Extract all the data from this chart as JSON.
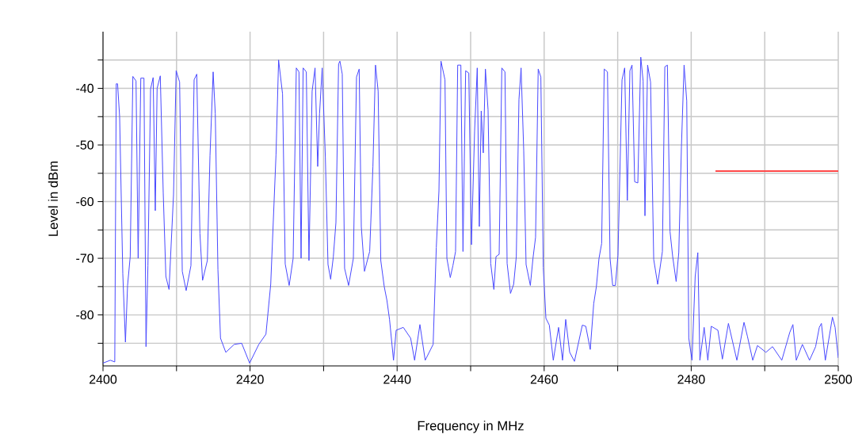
{
  "chart_data": {
    "type": "line",
    "xlabel": "Frequency in MHz",
    "ylabel": "Level in dBm",
    "xlim": [
      2400,
      2500
    ],
    "ylim": [
      -89,
      -30
    ],
    "xticks": [
      2400,
      {
        "value": 2410,
        "label": null
      },
      2420,
      {
        "value": 2430,
        "label": null
      },
      2440,
      {
        "value": 2450,
        "label": null
      },
      2460,
      {
        "value": 2470,
        "label": null
      },
      2480,
      {
        "value": 2490,
        "label": null
      },
      2500
    ],
    "yticks": [
      {
        "value": -85,
        "label": null
      },
      -80,
      {
        "value": -75,
        "label": null
      },
      -70,
      {
        "value": -65,
        "label": null
      },
      -60,
      {
        "value": -55,
        "label": null
      },
      -50,
      {
        "value": -45,
        "label": null
      },
      -40,
      {
        "value": -35,
        "label": null
      }
    ],
    "grid": true,
    "series": [
      {
        "color": "#4848ff",
        "x": [
          2400.0,
          2401.0,
          2401.6,
          2401.8,
          2401.98,
          2402.26,
          2402.69,
          2403.05,
          2403.34,
          2403.7,
          2404.06,
          2404.49,
          2404.78,
          2405.14,
          2405.57,
          2405.85,
          2406.11,
          2406.47,
          2406.82,
          2407.11,
          2407.36,
          2407.79,
          2408.19,
          2408.55,
          2408.98,
          2409.59,
          2409.95,
          2410.42,
          2410.78,
          2411.31,
          2411.96,
          2412.39,
          2412.75,
          2413.18,
          2413.54,
          2414.19,
          2414.55,
          2414.98,
          2415.27,
          2415.63,
          2415.98,
          2416.7,
          2417.85,
          2418.86,
          2419.94,
          2421.19,
          2422.16,
          2422.81,
          2423.53,
          2423.88,
          2424.42,
          2424.78,
          2425.32,
          2425.86,
          2426.29,
          2426.65,
          2426.94,
          2427.22,
          2427.65,
          2428.01,
          2428.44,
          2428.84,
          2429.2,
          2429.45,
          2429.81,
          2430.24,
          2430.6,
          2430.96,
          2431.32,
          2431.68,
          2432.04,
          2432.22,
          2432.54,
          2432.86,
          2433.4,
          2434.05,
          2434.48,
          2434.84,
          2435.13,
          2435.56,
          2436.27,
          2436.71,
          2437.06,
          2437.42,
          2437.78,
          2438.25,
          2438.61,
          2438.97,
          2439.51,
          2439.87,
          2440.84,
          2441.84,
          2442.38,
          2443.1,
          2443.82,
          2444.9,
          2445.33,
          2445.69,
          2445.97,
          2446.51,
          2446.77,
          2447.23,
          2447.59,
          2447.95,
          2448.24,
          2448.67,
          2448.96,
          2449.32,
          2449.75,
          2450.11,
          2450.54,
          2450.9,
          2451.18,
          2451.44,
          2451.72,
          2452.01,
          2452.37,
          2452.73,
          2453.16,
          2453.45,
          2453.88,
          2454.24,
          2454.67,
          2454.96,
          2455.42,
          2455.85,
          2456.21,
          2456.57,
          2456.86,
          2457.22,
          2457.54,
          2458.12,
          2458.48,
          2458.83,
          2459.19,
          2459.55,
          2459.88,
          2460.24,
          2460.7,
          2461.24,
          2461.96,
          2462.5,
          2462.93,
          2463.47,
          2464.12,
          2465.19,
          2465.66,
          2466.27,
          2466.74,
          2467.1,
          2467.46,
          2467.82,
          2468.17,
          2468.61,
          2468.96,
          2469.32,
          2469.68,
          2470.04,
          2470.59,
          2470.95,
          2471.31,
          2471.66,
          2471.95,
          2472.31,
          2472.74,
          2473.14,
          2473.46,
          2473.71,
          2474.07,
          2474.47,
          2474.9,
          2475.44,
          2476.08,
          2476.41,
          2476.76,
          2477.12,
          2477.48,
          2477.95,
          2478.31,
          2478.67,
          2479.03,
          2479.39,
          2479.67,
          2480.11,
          2480.54,
          2480.9,
          2481.18,
          2481.76,
          2482.26,
          2482.73,
          2483.63,
          2484.24,
          2485.06,
          2486.21,
          2487.18,
          2487.65,
          2488.37,
          2489.01,
          2490.16,
          2491.06,
          2492.32,
          2493.4,
          2493.83,
          2494.29,
          2495.12,
          2496.09,
          2496.92,
          2497.42,
          2497.71,
          2498.24,
          2499.21,
          2499.57,
          2500.0
        ],
        "values": [
          -88.5,
          -88.0,
          -88.3,
          -39.2,
          -39.2,
          -45.0,
          -72.7,
          -84.8,
          -74.8,
          -69.7,
          -37.9,
          -38.7,
          -70.0,
          -38.2,
          -38.2,
          -85.6,
          -71.3,
          -40.1,
          -38.1,
          -61.6,
          -40.0,
          -37.8,
          -58.4,
          -73.2,
          -75.5,
          -58.8,
          -36.9,
          -38.9,
          -72.3,
          -75.7,
          -71.3,
          -38.5,
          -37.5,
          -65.6,
          -73.9,
          -70.4,
          -51.9,
          -37.1,
          -44.5,
          -72.0,
          -84.1,
          -86.6,
          -85.2,
          -85.0,
          -88.5,
          -85.2,
          -83.4,
          -74.6,
          -51.7,
          -35.0,
          -41.0,
          -71.0,
          -74.8,
          -70.0,
          -36.4,
          -37.1,
          -70.0,
          -36.4,
          -37.1,
          -70.4,
          -40.5,
          -36.4,
          -53.8,
          -44.5,
          -36.4,
          -52.1,
          -71.1,
          -73.7,
          -69.8,
          -63.7,
          -35.7,
          -35.2,
          -37.5,
          -71.8,
          -74.8,
          -70.0,
          -38.0,
          -36.6,
          -64.4,
          -72.3,
          -68.8,
          -53.8,
          -35.9,
          -40.5,
          -70.4,
          -75.0,
          -77.4,
          -80.8,
          -88.0,
          -82.7,
          -82.2,
          -84.1,
          -88.0,
          -81.7,
          -88.0,
          -85.2,
          -68.1,
          -58.1,
          -35.2,
          -38.5,
          -70.0,
          -73.4,
          -71.3,
          -68.8,
          -35.9,
          -35.9,
          -68.8,
          -36.9,
          -37.3,
          -67.6,
          -47.5,
          -36.4,
          -64.4,
          -44.0,
          -51.4,
          -36.6,
          -43.8,
          -70.9,
          -75.5,
          -69.7,
          -69.3,
          -36.4,
          -37.1,
          -70.9,
          -76.2,
          -74.6,
          -69.7,
          -42.0,
          -36.4,
          -51.0,
          -71.1,
          -74.8,
          -70.0,
          -66.3,
          -36.6,
          -38.0,
          -71.6,
          -80.6,
          -81.8,
          -88.0,
          -82.2,
          -88.0,
          -80.8,
          -86.6,
          -88.2,
          -81.8,
          -82.0,
          -86.1,
          -78.0,
          -75.0,
          -70.0,
          -67.4,
          -36.6,
          -37.1,
          -70.0,
          -74.8,
          -74.8,
          -69.5,
          -38.5,
          -36.4,
          -59.8,
          -36.9,
          -35.9,
          -56.5,
          -56.7,
          -34.5,
          -38.7,
          -62.5,
          -35.9,
          -38.9,
          -70.2,
          -74.6,
          -68.8,
          -36.2,
          -35.9,
          -65.3,
          -69.7,
          -74.1,
          -69.0,
          -50.3,
          -35.9,
          -42.2,
          -84.1,
          -88.0,
          -73.2,
          -69.0,
          -88.0,
          -82.2,
          -88.0,
          -82.0,
          -82.7,
          -87.8,
          -81.5,
          -88.0,
          -81.3,
          -83.8,
          -88.0,
          -85.4,
          -86.6,
          -85.6,
          -88.0,
          -83.1,
          -81.7,
          -88.0,
          -85.2,
          -88.0,
          -85.6,
          -82.2,
          -81.5,
          -88.0,
          -80.4,
          -82.2,
          -87.6
        ]
      },
      {
        "color": "#ff4848",
        "x": [
          2483.3,
          2500
        ],
        "values": [
          -54.6,
          -54.6
        ]
      }
    ]
  }
}
